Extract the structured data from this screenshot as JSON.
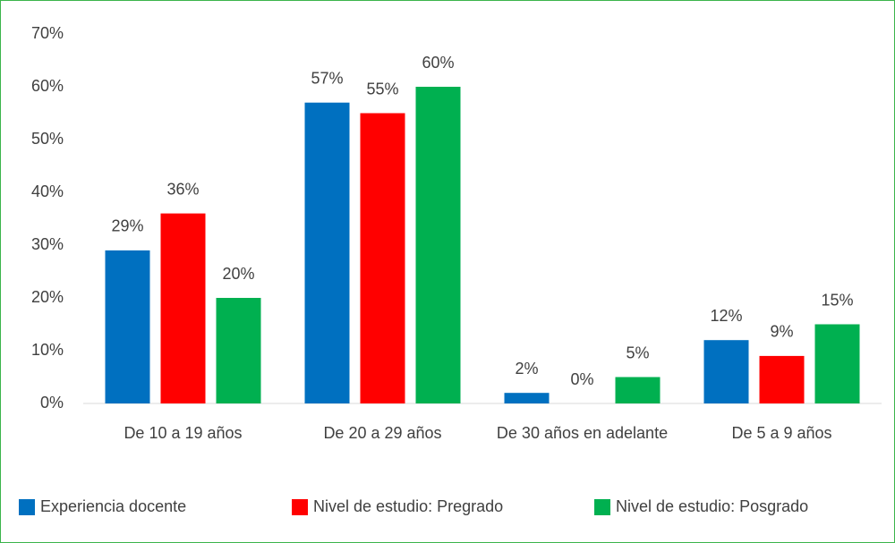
{
  "chart_data": {
    "type": "bar",
    "categories": [
      "De 10 a 19 años",
      "De 20 a 29 años",
      "De 30 años en adelante",
      "De 5 a 9 años"
    ],
    "series": [
      {
        "name": "Experiencia docente",
        "color": "#0070c0",
        "values": [
          29,
          57,
          2,
          12
        ],
        "value_labels": [
          "29%",
          "57%",
          "2%",
          "12%"
        ]
      },
      {
        "name": "Nivel de estudio: Pregrado",
        "color": "#ff0000",
        "values": [
          36,
          55,
          0,
          9
        ],
        "value_labels": [
          "36%",
          "55%",
          "0%",
          "9%"
        ]
      },
      {
        "name": "Nivel de estudio: Posgrado",
        "color": "#00b050",
        "values": [
          20,
          60,
          5,
          15
        ],
        "value_labels": [
          "20%",
          "60%",
          "5%",
          "15%"
        ]
      }
    ],
    "ylim": [
      0,
      70
    ],
    "yticks": [
      {
        "value": 0,
        "label": "0%"
      },
      {
        "value": 10,
        "label": "10%"
      },
      {
        "value": 20,
        "label": "20%"
      },
      {
        "value": 30,
        "label": "30%"
      },
      {
        "value": 40,
        "label": "40%"
      },
      {
        "value": 50,
        "label": "50%"
      },
      {
        "value": 60,
        "label": "60%"
      },
      {
        "value": 70,
        "label": "70%"
      }
    ],
    "grid": false,
    "legend": "bottom"
  }
}
